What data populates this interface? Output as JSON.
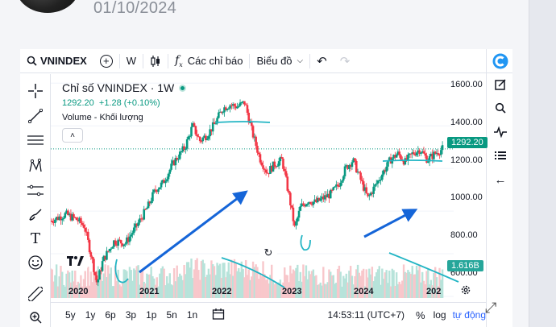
{
  "post": {
    "date": "01/10/2024"
  },
  "toolbar": {
    "symbol": "VNINDEX",
    "interval": "W",
    "indicators": "Các chỉ báo",
    "chart_type": "Biểu đồ"
  },
  "legend": {
    "title": "Chỉ số VNINDEX · 1W",
    "price": "1292.20",
    "change": "+1.28 (+0.10%)",
    "volume_label": "Volume - Khối lượng"
  },
  "price_axis": [
    "1600.00",
    "1400.00",
    "1200.00",
    "1000.00",
    "800.00",
    "600.00"
  ],
  "time_axis": [
    "2020",
    "2021",
    "2022",
    "2023",
    "2024",
    "202"
  ],
  "badges": {
    "last_price": "1292.20",
    "volume": "1.616B"
  },
  "bottom_bar": {
    "ranges": [
      "5y",
      "1y",
      "6p",
      "3p",
      "1p",
      "5n",
      "1n"
    ],
    "clock": "14:53:11 (UTC+7)",
    "percent": "%",
    "log": "log",
    "auto": "tự động"
  },
  "colors": {
    "up": "#089981",
    "down": "#f23645",
    "accent": "#2962ff",
    "annotation": "#22b5c4",
    "arrow": "#1565d8"
  },
  "chart_data": {
    "type": "candlestick",
    "symbol": "VNINDEX",
    "interval": "1W",
    "x_range": [
      2019.6,
      2025.0
    ],
    "y_range": [
      600,
      1620
    ],
    "close_path": [
      [
        2019.6,
        955
      ],
      [
        2019.8,
        985
      ],
      [
        2019.95,
        960
      ],
      [
        2020.05,
        930
      ],
      [
        2020.15,
        780
      ],
      [
        2020.22,
        660
      ],
      [
        2020.3,
        770
      ],
      [
        2020.45,
        860
      ],
      [
        2020.6,
        850
      ],
      [
        2020.75,
        930
      ],
      [
        2020.9,
        1020
      ],
      [
        2021.0,
        1100
      ],
      [
        2021.1,
        1130
      ],
      [
        2021.25,
        1230
      ],
      [
        2021.4,
        1300
      ],
      [
        2021.5,
        1400
      ],
      [
        2021.6,
        1330
      ],
      [
        2021.7,
        1360
      ],
      [
        2021.8,
        1410
      ],
      [
        2021.9,
        1480
      ],
      [
        2022.0,
        1500
      ],
      [
        2022.1,
        1490
      ],
      [
        2022.2,
        1510
      ],
      [
        2022.3,
        1370
      ],
      [
        2022.4,
        1250
      ],
      [
        2022.5,
        1180
      ],
      [
        2022.6,
        1220
      ],
      [
        2022.7,
        1240
      ],
      [
        2022.8,
        1060
      ],
      [
        2022.87,
        920
      ],
      [
        2022.95,
        1020
      ],
      [
        2023.05,
        1050
      ],
      [
        2023.15,
        1040
      ],
      [
        2023.25,
        1060
      ],
      [
        2023.35,
        1080
      ],
      [
        2023.45,
        1120
      ],
      [
        2023.55,
        1200
      ],
      [
        2023.65,
        1240
      ],
      [
        2023.75,
        1150
      ],
      [
        2023.85,
        1060
      ],
      [
        2023.95,
        1120
      ],
      [
        2024.05,
        1180
      ],
      [
        2024.15,
        1240
      ],
      [
        2024.25,
        1270
      ],
      [
        2024.35,
        1230
      ],
      [
        2024.45,
        1270
      ],
      [
        2024.55,
        1290
      ],
      [
        2024.65,
        1240
      ],
      [
        2024.75,
        1270
      ],
      [
        2024.85,
        1292
      ]
    ]
  }
}
